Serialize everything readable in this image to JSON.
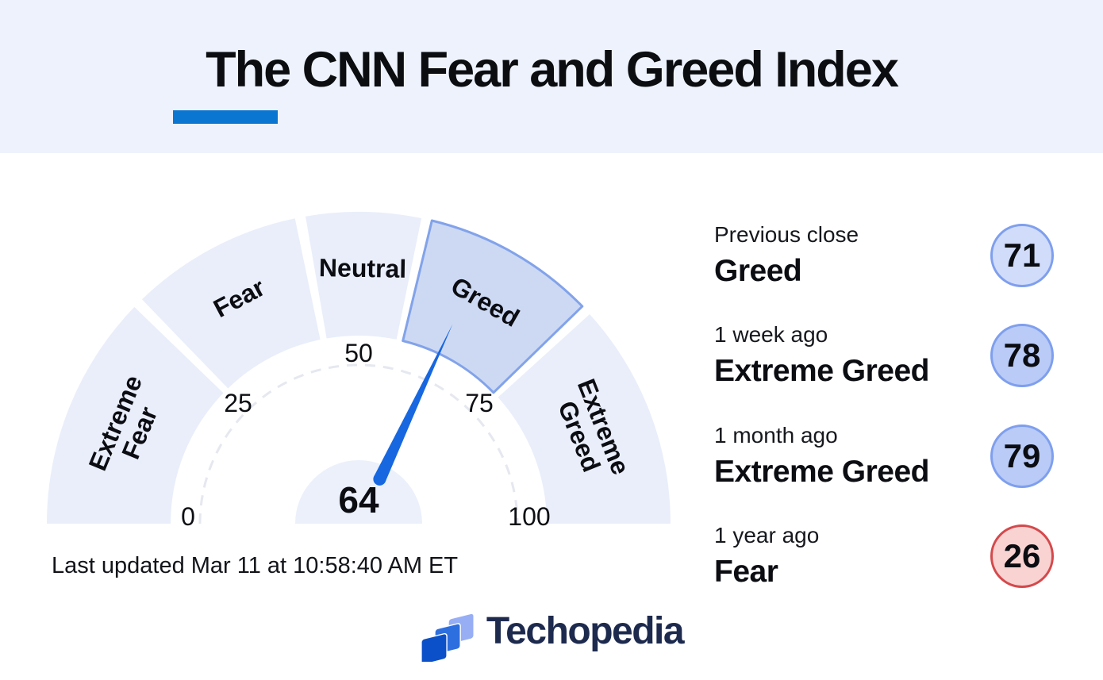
{
  "theme": {
    "accent": "#0b76d1",
    "header_bg": "#eef2fc"
  },
  "header": {
    "title": "The CNN Fear and Greed Index"
  },
  "chart_data": {
    "type": "gauge",
    "title": "The CNN Fear and Greed Index",
    "min": 0,
    "max": 100,
    "value": 64,
    "value_label": "64",
    "current_category": "Greed",
    "ticks": [
      0,
      25,
      50,
      75,
      100
    ],
    "segments": [
      {
        "label": "Extreme Fear",
        "lines": [
          "Extreme",
          "Fear"
        ],
        "start": 0,
        "end": 25,
        "highlighted": false
      },
      {
        "label": "Fear",
        "lines": [
          "Fear"
        ],
        "start": 25,
        "end": 44,
        "highlighted": false
      },
      {
        "label": "Neutral",
        "lines": [
          "Neutral"
        ],
        "start": 44,
        "end": 57,
        "highlighted": false
      },
      {
        "label": "Greed",
        "lines": [
          "Greed"
        ],
        "start": 57,
        "end": 76,
        "highlighted": true
      },
      {
        "label": "Extreme Greed",
        "lines": [
          "Extreme",
          "Greed"
        ],
        "start": 76,
        "end": 100,
        "highlighted": false
      }
    ],
    "colors": {
      "segment": "#e9eefa",
      "segment_active": "#cdd9f3",
      "segment_active_border": "#82a3ea",
      "needle": "#1767e0",
      "dashed_arc": "#e6e8f0",
      "hub": "#ebf0fb",
      "tick_text": "#0d0f13",
      "label_text": "#0b0d12"
    },
    "history": [
      {
        "period": "Previous close",
        "category": "Greed",
        "value": 71,
        "circle_fill": "#d0dcf9",
        "circle_border": "#7f9fee"
      },
      {
        "period": "1 week ago",
        "category": "Extreme Greed",
        "value": 78,
        "circle_fill": "#b9cbf6",
        "circle_border": "#7f9fee"
      },
      {
        "period": "1 month ago",
        "category": "Extreme Greed",
        "value": 79,
        "circle_fill": "#b9cbf6",
        "circle_border": "#7f9fee"
      },
      {
        "period": "1 year ago",
        "category": "Fear",
        "value": 26,
        "circle_fill": "#f8d3d2",
        "circle_border": "#d4494c"
      }
    ]
  },
  "footer": {
    "last_updated": "Last updated Mar 11 at 10:58:40 AM ET",
    "brand": "Techopedia",
    "logo_colors": [
      "#97aef5",
      "#2e6fe0",
      "#0b50c8"
    ],
    "wordmark_color": "#1d2a4e"
  }
}
